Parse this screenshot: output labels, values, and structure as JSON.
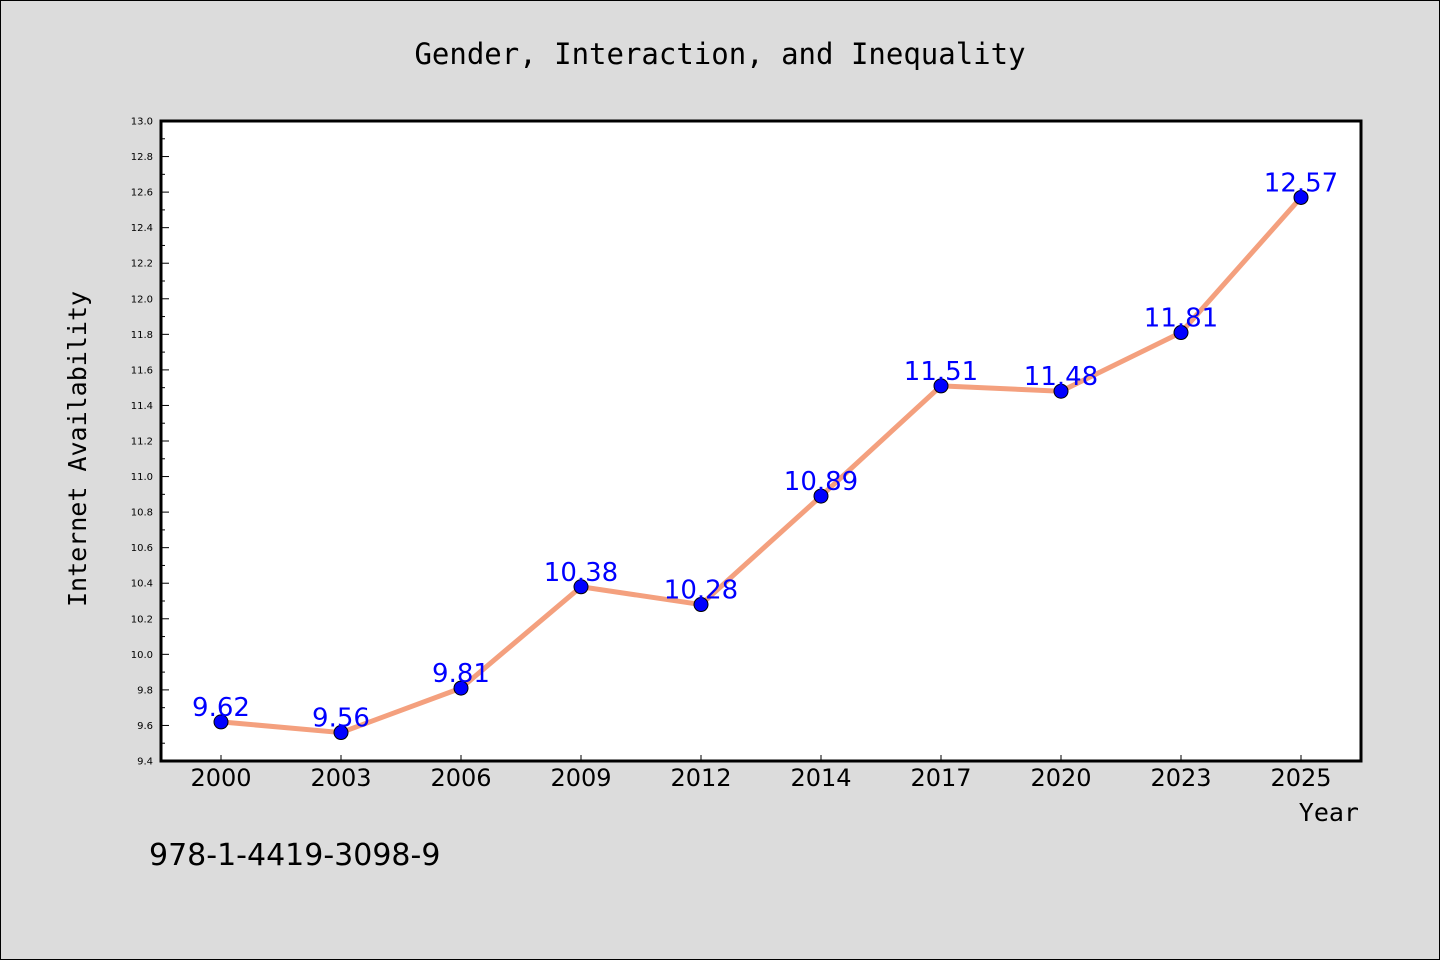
{
  "footer": {
    "isbn": "978-1-4419-3098-9"
  },
  "chart_data": {
    "type": "line",
    "title": "Gender, Interaction, and Inequality",
    "xlabel": "Year",
    "ylabel": "Internet Availability",
    "categories": [
      "2000",
      "2003",
      "2006",
      "2009",
      "2012",
      "2014",
      "2017",
      "2020",
      "2023",
      "2025"
    ],
    "values": [
      9.62,
      9.56,
      9.81,
      10.38,
      10.28,
      10.89,
      11.51,
      11.48,
      11.81,
      12.57
    ],
    "data_labels": [
      "9.62",
      "9.56",
      "9.81",
      "10.38",
      "10.28",
      "10.89",
      "11.51",
      "11.48",
      "11.81",
      "12.57"
    ],
    "ylim": [
      9.4,
      13.0
    ],
    "yticks": [
      "9.4",
      "9.6",
      "9.8",
      "10.0",
      "10.2",
      "10.4",
      "10.6",
      "10.8",
      "11.0",
      "11.2",
      "11.4",
      "11.6",
      "11.8",
      "12.0",
      "12.2",
      "12.4",
      "12.6",
      "12.8",
      "13.0"
    ],
    "grid": false,
    "line_color": "#f4a07e",
    "marker_color": "#0000ff",
    "label_color": "#0000ff",
    "plot_background": "#ffffff",
    "figure_background": "#dcdcdc"
  }
}
